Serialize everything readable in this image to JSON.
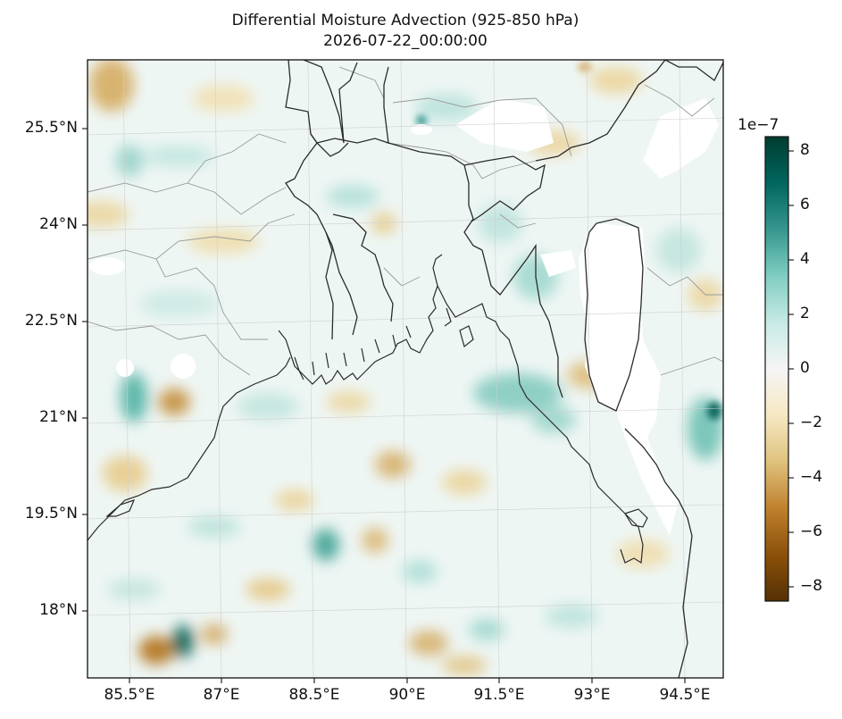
{
  "title": "Differential Moisture Advection (925-850 hPa)",
  "subtitle": "2026-07-22_00:00:00",
  "map": {
    "lon_range": [
      84.9,
      95.0
    ],
    "lat_range": [
      16.9,
      26.6
    ],
    "lat_ticks": [
      {
        "value": 25.5,
        "label": "25.5°N"
      },
      {
        "value": 24,
        "label": "24°N"
      },
      {
        "value": 22.5,
        "label": "22.5°N"
      },
      {
        "value": 21,
        "label": "21°N"
      },
      {
        "value": 19.5,
        "label": "19.5°N"
      },
      {
        "value": 18,
        "label": "18°N"
      }
    ],
    "lon_ticks": [
      {
        "value": 85.5,
        "label": "85.5°E"
      },
      {
        "value": 87,
        "label": "87°E"
      },
      {
        "value": 88.5,
        "label": "88.5°E"
      },
      {
        "value": 90,
        "label": "90°E"
      },
      {
        "value": 91.5,
        "label": "91.5°E"
      },
      {
        "value": 93,
        "label": "93°E"
      },
      {
        "value": 94.5,
        "label": "94.5°E"
      }
    ],
    "colormap": "BrBG",
    "gridlines": true,
    "missing_data_color": "#ffffff"
  },
  "colorbar": {
    "exponent_label": "1e−7",
    "range": [
      -8.5,
      8.5
    ],
    "ticks": [
      {
        "value": 8,
        "label": "8"
      },
      {
        "value": 6,
        "label": "6"
      },
      {
        "value": 4,
        "label": "4"
      },
      {
        "value": 2,
        "label": "2"
      },
      {
        "value": 0,
        "label": "0"
      },
      {
        "value": -2,
        "label": "−2"
      },
      {
        "value": -4,
        "label": "−4"
      },
      {
        "value": -6,
        "label": "−6"
      },
      {
        "value": -8,
        "label": "−8"
      }
    ],
    "colors": [
      "#543005",
      "#8c510a",
      "#bf812d",
      "#dfc27d",
      "#f6e8c3",
      "#f5f5f5",
      "#c7eae5",
      "#80cdc1",
      "#35978f",
      "#01665e",
      "#003c30"
    ]
  }
}
